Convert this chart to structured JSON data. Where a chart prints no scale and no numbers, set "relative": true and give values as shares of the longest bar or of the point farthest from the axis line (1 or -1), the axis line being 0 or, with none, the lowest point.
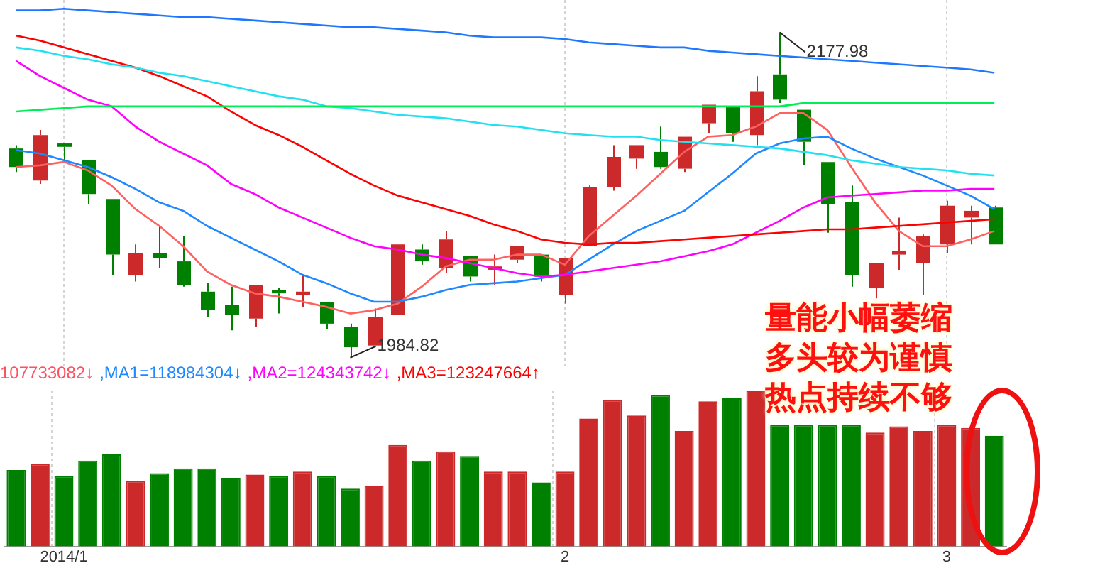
{
  "chart_data": [
    {
      "type": "candlestick",
      "tick_labels": false,
      "grid": "x",
      "categories": [
        null,
        null,
        "2014/1",
        null,
        null,
        null,
        null,
        null,
        null,
        null,
        null,
        null,
        null,
        null,
        null,
        null,
        null,
        null,
        null,
        null,
        null,
        null,
        null,
        "2",
        null,
        null,
        null,
        null,
        null,
        null,
        null,
        null,
        null,
        null,
        null,
        null,
        null,
        null,
        null,
        "3",
        null,
        null
      ],
      "colors": [
        "#008000",
        "#cc2a2a",
        "#008000",
        "#008000",
        "#008000",
        "#cc2a2a",
        "#008000",
        "#008000",
        "#008000",
        "#008000",
        "#cc2a2a",
        "#008000",
        "#cc2a2a",
        "#008000",
        "#008000",
        "#cc2a2a",
        "#cc2a2a",
        "#008000",
        "#cc2a2a",
        "#008000",
        "#cc2a2a",
        "#cc2a2a",
        "#008000",
        "#cc2a2a",
        "#cc2a2a",
        "#cc2a2a",
        "#cc2a2a",
        "#008000",
        "#cc2a2a",
        "#cc2a2a",
        "#008000",
        "#cc2a2a",
        "#008000",
        "#008000",
        "#008000",
        "#008000",
        "#cc2a2a",
        "#cc2a2a",
        "#cc2a2a",
        "#cc2a2a",
        "#cc2a2a",
        "#008000"
      ],
      "ohlc": [
        [
          2109,
          2111,
          2095,
          2098
        ],
        [
          2090,
          2120,
          2088,
          2117
        ],
        [
          2112,
          2112,
          2101,
          2110
        ],
        [
          2102,
          2102,
          2076,
          2082
        ],
        [
          2079,
          2079,
          2034,
          2046
        ],
        [
          2034,
          2052,
          2030,
          2047
        ],
        [
          2047,
          2063,
          2038,
          2044
        ],
        [
          2042,
          2057,
          2027,
          2028
        ],
        [
          2024,
          2029,
          2009,
          2013
        ],
        [
          2016,
          2027,
          2001,
          2010
        ],
        [
          2008,
          2028,
          2003,
          2028
        ],
        [
          2025,
          2026,
          2011,
          2023
        ],
        [
          2022,
          2034,
          2015,
          2024
        ],
        [
          2018,
          2018,
          2002,
          2005
        ],
        [
          2003,
          2005,
          1984.82,
          1991
        ],
        [
          1992,
          2014,
          1992,
          2009
        ],
        [
          2010,
          2052,
          2010,
          2052
        ],
        [
          2049,
          2052,
          2040,
          2042
        ],
        [
          2038,
          2060,
          2035,
          2055
        ],
        [
          2045,
          2045,
          2030,
          2033
        ],
        [
          2037,
          2046,
          2028,
          2039
        ],
        [
          2043,
          2051,
          2041,
          2051
        ],
        [
          2046,
          2046,
          2030,
          2033
        ],
        [
          2022,
          2044,
          2017,
          2044
        ],
        [
          2051,
          2087,
          2051,
          2086
        ],
        [
          2086,
          2111,
          2084,
          2104
        ],
        [
          2103,
          2111,
          2097,
          2111
        ],
        [
          2107,
          2122,
          2097,
          2098
        ],
        [
          2097,
          2116,
          2095,
          2116
        ],
        [
          2124,
          2135,
          2118,
          2135
        ],
        [
          2134,
          2134,
          2113,
          2118
        ],
        [
          2117,
          2152,
          2111,
          2143
        ],
        [
          2153,
          2177.98,
          2136,
          2138
        ],
        [
          2132,
          2132,
          2099,
          2113
        ],
        [
          2101,
          2101,
          2059,
          2076
        ],
        [
          2077,
          2087,
          2027,
          2034
        ],
        [
          2026,
          2041,
          2020,
          2041
        ],
        [
          2046,
          2068,
          2037,
          2048
        ],
        [
          2041,
          2058,
          2022,
          2057
        ],
        [
          2052,
          2078,
          2047,
          2075
        ],
        [
          2068,
          2075,
          2052,
          2072
        ],
        [
          2074,
          2075,
          2052,
          2052
        ]
      ],
      "series": [
        {
          "type": "line",
          "color": "#1e78ff",
          "values": [
            2191,
            2191,
            2192,
            2191,
            2190,
            2189,
            2188,
            2187,
            2187,
            2186,
            2185,
            2184,
            2183,
            2182,
            2181,
            2181,
            2180,
            2179,
            2178,
            2176,
            2175,
            2175,
            2175,
            2174,
            2172,
            2171,
            2170,
            2169,
            2169,
            2167,
            2166,
            2165,
            2164,
            2163,
            2162,
            2161,
            2160,
            2159,
            2158,
            2157,
            2156,
            2154
          ]
        },
        {
          "type": "line",
          "color": "#00ee55",
          "values": [
            2131,
            2132,
            2133,
            2134,
            2134,
            2134,
            2134,
            2134,
            2134,
            2134,
            2134,
            2134,
            2134,
            2134,
            2134,
            2134,
            2134,
            2134,
            2134,
            2134,
            2134,
            2134,
            2134,
            2134,
            2134,
            2134,
            2134,
            2134,
            2134,
            2134,
            2134,
            2134,
            2134,
            2136,
            2136,
            2136,
            2136,
            2136,
            2136,
            2136,
            2136,
            2136
          ]
        },
        {
          "type": "line",
          "color": "#22e0f0",
          "values": [
            2169,
            2167,
            2164,
            2162,
            2159,
            2157,
            2154,
            2152,
            2149,
            2146,
            2143,
            2140,
            2138,
            2134,
            2133,
            2131,
            2129,
            2128,
            2127,
            2125,
            2123,
            2122,
            2120,
            2118,
            2117,
            2116,
            2116,
            2114,
            2113,
            2112,
            2111,
            2110,
            2109,
            2107,
            2105,
            2102,
            2100,
            2098,
            2097,
            2096,
            2094,
            2093
          ]
        },
        {
          "type": "line",
          "color": "#ff0000",
          "values": [
            2176,
            2173,
            2169,
            2165,
            2161,
            2157,
            2152,
            2146,
            2140,
            2131,
            2123,
            2117,
            2110,
            2102,
            2094,
            2087,
            2081,
            2077,
            2073,
            2069,
            2064,
            2060,
            2055,
            2053,
            2052,
            2053,
            2053,
            2054,
            2055,
            2056,
            2057,
            2058,
            2059,
            2060,
            2061,
            2061,
            2062,
            2063,
            2064,
            2065,
            2066,
            2067
          ]
        },
        {
          "type": "line",
          "color": "#ff00ff",
          "values": [
            2161,
            2152,
            2145,
            2138,
            2134,
            2122,
            2113,
            2106,
            2099,
            2088,
            2082,
            2074,
            2068,
            2062,
            2056,
            2051,
            2049,
            2046,
            2044,
            2041,
            2038,
            2035,
            2033,
            2034,
            2036,
            2038,
            2040,
            2042,
            2045,
            2048,
            2052,
            2059,
            2066,
            2074,
            2080,
            2081,
            2082,
            2083,
            2084,
            2084,
            2085,
            2085
          ]
        },
        {
          "type": "line",
          "color": "#1e88ff",
          "values": [
            2108,
            2106,
            2102,
            2098,
            2092,
            2085,
            2077,
            2072,
            2063,
            2056,
            2049,
            2042,
            2034,
            2029,
            2023,
            2018,
            2018,
            2021,
            2025,
            2028,
            2029,
            2030,
            2032,
            2034,
            2043,
            2052,
            2060,
            2066,
            2072,
            2083,
            2094,
            2106,
            2112,
            2115,
            2116,
            2109,
            2103,
            2098,
            2093,
            2087,
            2081,
            2073
          ]
        },
        {
          "type": "line",
          "color": "#ff6060",
          "values": [
            2098,
            2099,
            2101,
            2096,
            2087,
            2073,
            2063,
            2051,
            2036,
            2028,
            2023,
            2021,
            2018,
            2015,
            2011,
            2013,
            2017,
            2027,
            2039,
            2043,
            2043,
            2046,
            2046,
            2040,
            2057,
            2069,
            2081,
            2094,
            2107,
            2116,
            2117,
            2122,
            2130,
            2130,
            2120,
            2098,
            2077,
            2060,
            2051,
            2051,
            2055,
            2060
          ]
        }
      ],
      "annotations": [
        "2177.98",
        "1984.82",
        "量能小幅萎缩",
        "多头较为谨慎",
        "热点持续不够"
      ]
    },
    {
      "type": "bar",
      "relative": true,
      "grid": "x",
      "categories": [
        null,
        null,
        "2014/1",
        null,
        null,
        null,
        null,
        null,
        null,
        null,
        null,
        null,
        null,
        null,
        null,
        null,
        null,
        null,
        null,
        null,
        null,
        null,
        null,
        "2",
        null,
        null,
        null,
        null,
        null,
        null,
        null,
        null,
        null,
        null,
        null,
        null,
        null,
        null,
        null,
        "3",
        null,
        null
      ],
      "colors": [
        "#008000",
        "#cc2a2a",
        "#008000",
        "#008000",
        "#008000",
        "#cc2a2a",
        "#008000",
        "#008000",
        "#008000",
        "#008000",
        "#cc2a2a",
        "#008000",
        "#cc2a2a",
        "#008000",
        "#008000",
        "#cc2a2a",
        "#cc2a2a",
        "#008000",
        "#cc2a2a",
        "#008000",
        "#cc2a2a",
        "#cc2a2a",
        "#008000",
        "#cc2a2a",
        "#cc2a2a",
        "#cc2a2a",
        "#cc2a2a",
        "#008000",
        "#cc2a2a",
        "#cc2a2a",
        "#008000",
        "#cc2a2a",
        "#008000",
        "#008000",
        "#008000",
        "#008000",
        "#cc2a2a",
        "#cc2a2a",
        "#cc2a2a",
        "#cc2a2a",
        "#cc2a2a",
        "#008000"
      ],
      "values": [
        0.49,
        0.53,
        0.45,
        0.55,
        0.59,
        0.42,
        0.47,
        0.5,
        0.5,
        0.44,
        0.46,
        0.45,
        0.48,
        0.45,
        0.37,
        0.39,
        0.65,
        0.55,
        0.61,
        0.58,
        0.48,
        0.48,
        0.41,
        0.48,
        0.82,
        0.94,
        0.84,
        0.97,
        0.74,
        0.93,
        0.95,
        1,
        0.78,
        0.78,
        0.78,
        0.78,
        0.73,
        0.77,
        0.74,
        0.78,
        0.76,
        0.71
      ],
      "annotations": [
        "107733082↓",
        ",MA1=118984304↓",
        ",MA2=124343742↓",
        ",MA3=123247664↑"
      ]
    }
  ]
}
